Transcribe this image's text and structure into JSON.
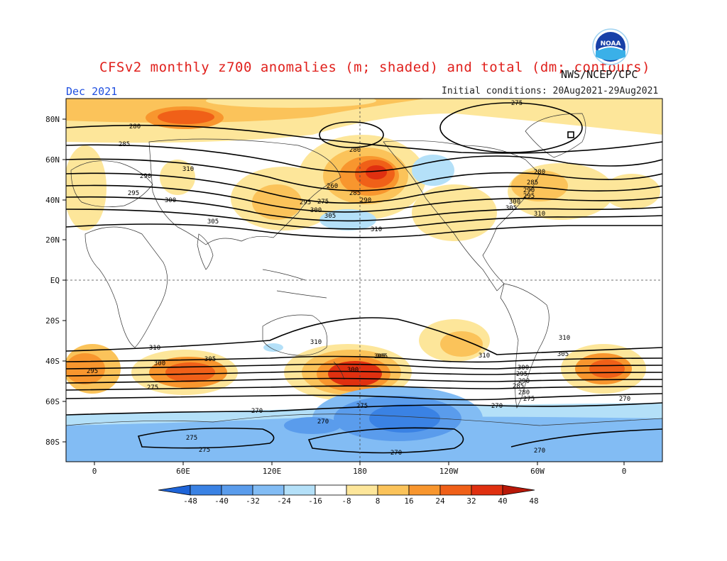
{
  "title": "CFSv2 monthly z700 anomalies (m; shaded) and total (dm; contours)",
  "agency": "NWS/NCEP/CPC",
  "month": "Dec 2021",
  "initial_conditions": "Initial conditions: 20Aug2021-29Aug2021",
  "logo_text": "NOAA",
  "lat_labels": [
    "80N",
    "60N",
    "40N",
    "20N",
    "EQ",
    "20S",
    "40S",
    "60S",
    "80S"
  ],
  "lon_labels": [
    "0",
    "60E",
    "120E",
    "180",
    "120W",
    "60W",
    "0"
  ],
  "colorbar": {
    "levels": [
      "-48",
      "-40",
      "-32",
      "-24",
      "-16",
      "-8",
      "8",
      "16",
      "24",
      "32",
      "40",
      "48"
    ],
    "colors": [
      "#1e64d8",
      "#3a82e4",
      "#5a9cec",
      "#82bcf4",
      "#b4e0f8",
      "#ffffff",
      "#fde69a",
      "#fbc35a",
      "#f8962e",
      "#f06018",
      "#e03010",
      "#b81808"
    ]
  },
  "contour_labels": [
    "275",
    "280",
    "285",
    "290",
    "295",
    "300",
    "305",
    "310",
    "280",
    "285",
    "290",
    "295",
    "300",
    "305",
    "310",
    "280",
    "285",
    "290",
    "295",
    "300",
    "305",
    "310",
    "260",
    "275",
    "305",
    "310",
    "310",
    "310",
    "305",
    "300",
    "295",
    "290",
    "285",
    "280",
    "275",
    "295",
    "300",
    "305",
    "310",
    "300",
    "305",
    "275",
    "270",
    "270",
    "270",
    "270",
    "275",
    "275",
    "275",
    "270",
    "270"
  ]
}
